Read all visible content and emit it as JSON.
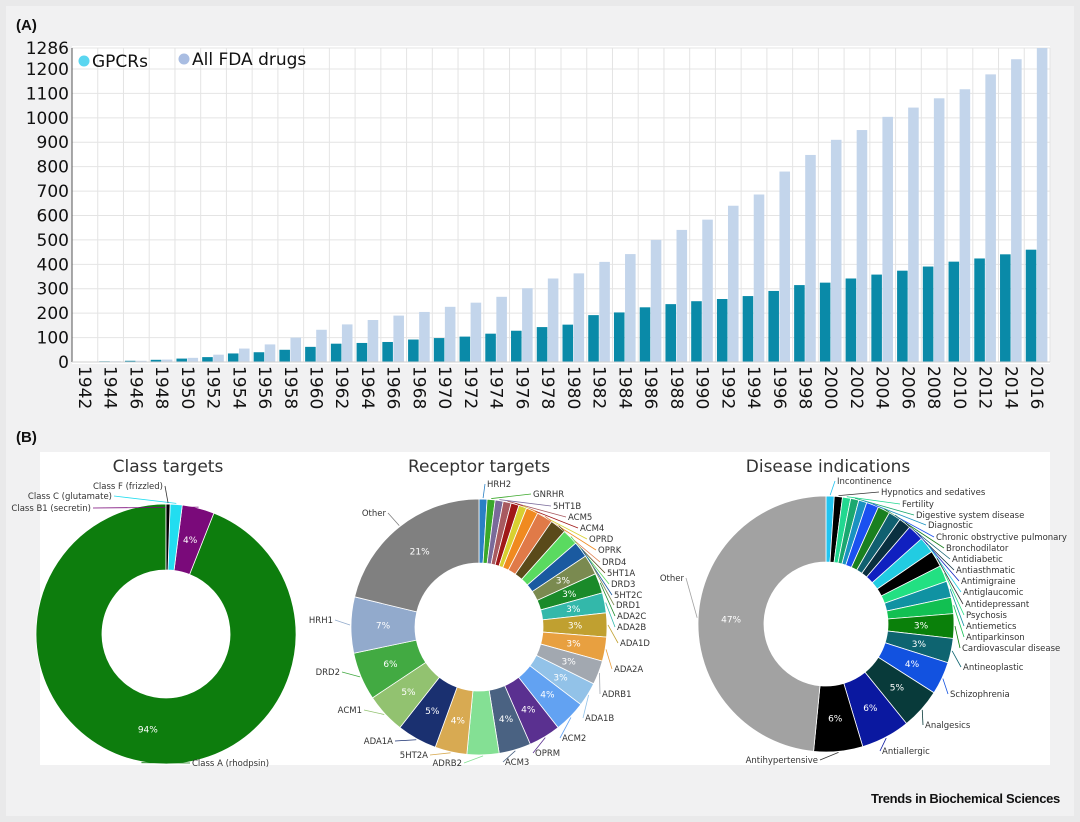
{
  "panel_a_label": "(A)",
  "panel_b_label": "(B)",
  "footer": "Trends in Biochemical Sciences",
  "chart_data": [
    {
      "type": "bar",
      "title": "",
      "xlabel": "",
      "ylabel": "",
      "ylim": [
        0,
        1286
      ],
      "yticks": [
        0,
        100,
        200,
        300,
        400,
        500,
        600,
        700,
        800,
        900,
        1000,
        1100,
        1200,
        1286
      ],
      "grid": true,
      "legend_position": "top-left",
      "categories": [
        "1942",
        "1944",
        "1946",
        "1948",
        "1950",
        "1952",
        "1954",
        "1956",
        "1958",
        "1960",
        "1962",
        "1964",
        "1966",
        "1968",
        "1970",
        "1972",
        "1974",
        "1976",
        "1978",
        "1980",
        "1982",
        "1984",
        "1986",
        "1988",
        "1990",
        "1992",
        "1994",
        "1996",
        "1998",
        "2000",
        "2002",
        "2004",
        "2006",
        "2008",
        "2010",
        "2012",
        "2014",
        "2016"
      ],
      "series": [
        {
          "name": "GPCRs",
          "color": "#0a8aa8",
          "legend_color": "#5ad6f0",
          "values": [
            2,
            3,
            5,
            9,
            14,
            20,
            35,
            40,
            50,
            62,
            75,
            78,
            82,
            92,
            98,
            104,
            116,
            128,
            143,
            153,
            192,
            203,
            224,
            237,
            249,
            258,
            270,
            291,
            315,
            325,
            342,
            358,
            374,
            391,
            411,
            424,
            441,
            460
          ]
        },
        {
          "name": "All FDA drugs",
          "color": "#c3d5eb",
          "legend_color": "#a9bde2",
          "values": [
            2,
            3,
            5,
            10,
            17,
            30,
            55,
            72,
            100,
            132,
            154,
            172,
            190,
            205,
            226,
            243,
            267,
            302,
            342,
            363,
            410,
            442,
            500,
            541,
            583,
            640,
            686,
            780,
            848,
            910,
            950,
            1004,
            1042,
            1080,
            1117,
            1178,
            1240,
            1286
          ]
        }
      ]
    },
    {
      "type": "pie",
      "title": "Class targets",
      "slices": [
        {
          "name": "Class A (rhodpsin)",
          "value": 94,
          "label": "94%",
          "color": "#0d7d0d"
        },
        {
          "name": "Class B1 (secretin)",
          "value": 4,
          "label": "4%",
          "color": "#7a0a7a"
        },
        {
          "name": "Class C (glutamate)",
          "value": 1.5,
          "label": "",
          "color": "#22ddf0"
        },
        {
          "name": "Class F (frizzled)",
          "value": 0.5,
          "label": "",
          "color": "#000000"
        }
      ],
      "start": "top",
      "order": "clockwise-from-Class-F-backwards"
    },
    {
      "type": "pie",
      "title": "Receptor targets",
      "slices": [
        {
          "name": "HRH2",
          "value": 1,
          "label": "",
          "color": "#2a80c4"
        },
        {
          "name": "GNRHR",
          "value": 1,
          "label": "",
          "color": "#3aa82a"
        },
        {
          "name": "5HT1B",
          "value": 1,
          "label": "",
          "color": "#7a6a9a"
        },
        {
          "name": "ACM5",
          "value": 1,
          "label": "",
          "color": "#a85a60"
        },
        {
          "name": "ACM4",
          "value": 1,
          "label": "",
          "color": "#a01818"
        },
        {
          "name": "OPRD",
          "value": 1,
          "label": "",
          "color": "#d8d030"
        },
        {
          "name": "OPRK",
          "value": 1.5,
          "label": "",
          "color": "#f08a20"
        },
        {
          "name": "DRD4",
          "value": 2,
          "label": "",
          "color": "#e07a48"
        },
        {
          "name": "5HT1A",
          "value": 2,
          "label": "",
          "color": "#5a4a1a"
        },
        {
          "name": "DRD3",
          "value": 2,
          "label": "",
          "color": "#5ada60"
        },
        {
          "name": "5HT2C",
          "value": 2,
          "label": "",
          "color": "#1a5aa0"
        },
        {
          "name": "DRD1",
          "value": 2.5,
          "label": "3%",
          "color": "#7a8a50"
        },
        {
          "name": "ADA2C",
          "value": 2.5,
          "label": "3%",
          "color": "#1a8a2a"
        },
        {
          "name": "ADA2B",
          "value": 2.5,
          "label": "3%",
          "color": "#33b8aa"
        },
        {
          "name": "ADA1D",
          "value": 3,
          "label": "3%",
          "color": "#c0a030"
        },
        {
          "name": "ADA2A",
          "value": 3,
          "label": "3%",
          "color": "#e8a040"
        },
        {
          "name": "ADRB1",
          "value": 3,
          "label": "3%",
          "color": "#a2a8b0"
        },
        {
          "name": "ADA1B",
          "value": 3,
          "label": "3%",
          "color": "#92c2e8"
        },
        {
          "name": "ACM2",
          "value": 4,
          "label": "4%",
          "color": "#62a2f2"
        },
        {
          "name": "OPRM",
          "value": 4,
          "label": "4%",
          "color": "#5a3090"
        },
        {
          "name": "ACM3",
          "value": 4,
          "label": "4%",
          "color": "#4a6282"
        },
        {
          "name": "ADRB2",
          "value": 4,
          "label": "",
          "color": "#84e094"
        },
        {
          "name": "5HT2A",
          "value": 4,
          "label": "4%",
          "color": "#d8aa52"
        },
        {
          "name": "ADA1A",
          "value": 5,
          "label": "5%",
          "color": "#1a3070"
        },
        {
          "name": "ACM1",
          "value": 5,
          "label": "5%",
          "color": "#92c270"
        },
        {
          "name": "DRD2",
          "value": 6,
          "label": "6%",
          "color": "#42aa42"
        },
        {
          "name": "HRH1",
          "value": 7,
          "label": "7%",
          "color": "#92aacc"
        },
        {
          "name": "Other",
          "value": 21,
          "label": "21%",
          "color": "#808080"
        }
      ]
    },
    {
      "type": "pie",
      "title": "Disease indications",
      "slices": [
        {
          "name": "Incontinence",
          "value": 1,
          "label": "",
          "color": "#22c4f0"
        },
        {
          "name": "Hypnotics and sedatives",
          "value": 1,
          "label": "",
          "color": "#000000"
        },
        {
          "name": "Fertility",
          "value": 1,
          "label": "",
          "color": "#22d890"
        },
        {
          "name": "Digestive system disease",
          "value": 1,
          "label": "",
          "color": "#1aa870"
        },
        {
          "name": "Diagnostic",
          "value": 1,
          "label": "",
          "color": "#1a92c0"
        },
        {
          "name": "Chronic obstryctive pulmonary",
          "value": 1.5,
          "label": "",
          "color": "#1a50f0"
        },
        {
          "name": "Bronchodilator",
          "value": 1.5,
          "label": "",
          "color": "#1a8020"
        },
        {
          "name": "Antidiabetic",
          "value": 1.5,
          "label": "",
          "color": "#106070"
        },
        {
          "name": "Antiasthmatic",
          "value": 1.5,
          "label": "",
          "color": "#0a3040"
        },
        {
          "name": "Antimigraine",
          "value": 2,
          "label": "",
          "color": "#1020c0"
        },
        {
          "name": "Antiglaucomic",
          "value": 2,
          "label": "",
          "color": "#22cce2"
        },
        {
          "name": "Antidepressant",
          "value": 2,
          "label": "",
          "color": "#000000"
        },
        {
          "name": "Psychosis",
          "value": 2,
          "label": "",
          "color": "#22e082"
        },
        {
          "name": "Antiemetics",
          "value": 2,
          "label": "",
          "color": "#1092a2"
        },
        {
          "name": "Antiparkinson",
          "value": 2,
          "label": "",
          "color": "#12c052"
        },
        {
          "name": "Cardiovascular disease",
          "value": 3,
          "label": "3%",
          "color": "#0a800a"
        },
        {
          "name": "Antineoplastic",
          "value": 3,
          "label": "3%",
          "color": "#0e6470"
        },
        {
          "name": "Schizophrenia",
          "value": 4,
          "label": "4%",
          "color": "#1252e0"
        },
        {
          "name": "Analgesics",
          "value": 5,
          "label": "5%",
          "color": "#083a3a"
        },
        {
          "name": "Antiallergic",
          "value": 6,
          "label": "6%",
          "color": "#0a18a0"
        },
        {
          "name": "Antihypertensive",
          "value": 6,
          "label": "6%",
          "color": "#000000"
        },
        {
          "name": "Other",
          "value": 47,
          "label": "47%",
          "color": "#a2a2a2"
        }
      ]
    }
  ]
}
